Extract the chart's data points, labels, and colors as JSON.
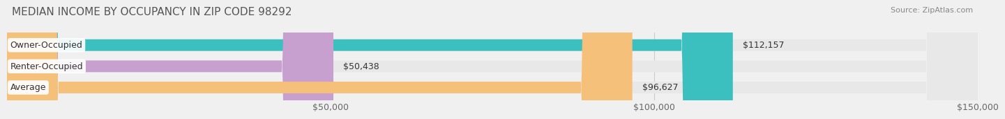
{
  "title": "MEDIAN INCOME BY OCCUPANCY IN ZIP CODE 98292",
  "source": "Source: ZipAtlas.com",
  "categories": [
    "Owner-Occupied",
    "Renter-Occupied",
    "Average"
  ],
  "values": [
    112157,
    50438,
    96627
  ],
  "labels": [
    "$112,157",
    "$50,438",
    "$96,627"
  ],
  "bar_colors": [
    "#3bbfbf",
    "#c8a0d0",
    "#f5c07a"
  ],
  "background_color": "#f0f0f0",
  "bar_bg_color": "#e0e0e0",
  "xlim": [
    0,
    150000
  ],
  "xticks": [
    0,
    50000,
    100000,
    150000
  ],
  "xtick_labels": [
    "",
    "$50,000",
    "$100,000",
    "$150,000"
  ],
  "title_fontsize": 11,
  "source_fontsize": 8,
  "label_fontsize": 9,
  "bar_height": 0.55
}
